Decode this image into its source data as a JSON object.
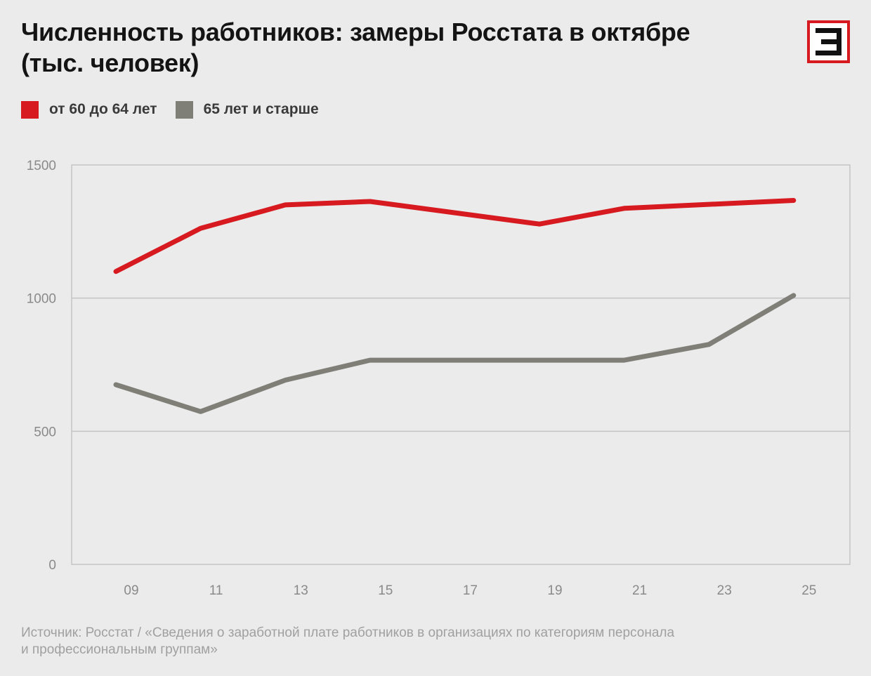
{
  "title": {
    "line1": "Численность работников: замеры Росстата в октябре",
    "line2": "(тыс. человек)"
  },
  "logo": {
    "icon": "e-letter-logo",
    "color": "#d71920"
  },
  "legend": [
    {
      "label": "от 60 до 64 лет",
      "color": "#d71920"
    },
    {
      "label": "65 лет и старше",
      "color": "#7f7f77"
    }
  ],
  "chart_data": {
    "type": "line",
    "title": "Численность работников: замеры Росстата в октябре (тыс. человек)",
    "xlabel": "",
    "ylabel": "",
    "x": [
      "09",
      "11",
      "13",
      "15",
      "17",
      "19",
      "21",
      "23",
      "25"
    ],
    "x_tick_labels": [
      "09",
      "11",
      "13",
      "15",
      "17",
      "19",
      "21",
      "23",
      "25"
    ],
    "y_tick_labels": [
      "1500",
      "1000",
      "500",
      "0"
    ],
    "yticks": [
      0,
      500,
      1000,
      1500
    ],
    "ylim": [
      0,
      1500
    ],
    "grid": true,
    "legend_placement": "top-left",
    "series": [
      {
        "name": "от 60 до 64 лет",
        "color": "#d71920",
        "x": [
          "09",
          "11",
          "13",
          "15",
          "19",
          "21",
          "25"
        ],
        "values": [
          1100,
          1262,
          1350,
          1363,
          1278,
          1337,
          1367
        ]
      },
      {
        "name": "65 лет и старше",
        "color": "#7f7f77",
        "x": [
          "09",
          "11",
          "13",
          "15",
          "17",
          "19",
          "21",
          "23",
          "25"
        ],
        "values": [
          675,
          574,
          692,
          767,
          767,
          767,
          767,
          826,
          1010
        ]
      }
    ]
  },
  "source": {
    "line1": "Источник: Росстат / «Сведения о заработной плате работников в организациях по категориям персонала",
    "line2": "и профессиональным группам»"
  }
}
